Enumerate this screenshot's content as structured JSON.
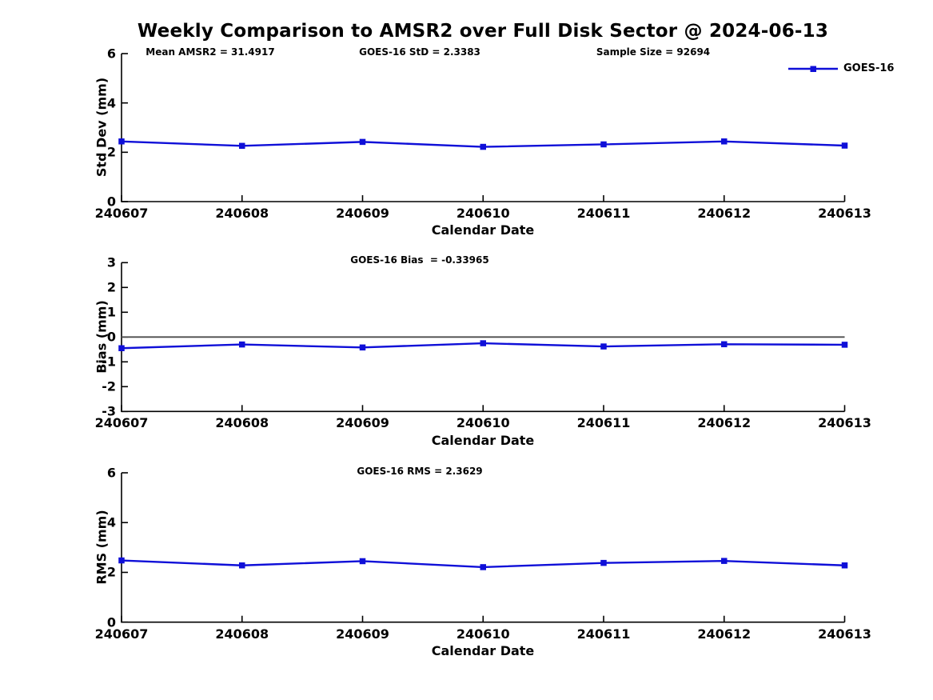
{
  "title": "Weekly Comparison to AMSR2 over Full Disk Sector @ 2024-06-13",
  "legend": {
    "label": "GOES-16",
    "marker": "filled-square",
    "position": "top-right"
  },
  "colors": {
    "line": "#0F0FD8",
    "marker": "#0F0FD8",
    "zero_line": "#4D4D4D",
    "axis": "#000000",
    "text": "#000000",
    "background": "#FFFFFF"
  },
  "chart_data": [
    {
      "type": "line",
      "ylabel": "Std Dev (mm)",
      "xlabel": "Calendar Date",
      "annotations": [
        "Mean AMSR2 = 31.4917",
        "GOES-16 StD = 2.3383",
        "Sample Size = 92694"
      ],
      "categories": [
        "240607",
        "240608",
        "240609",
        "240610",
        "240611",
        "240612",
        "240613"
      ],
      "series": [
        {
          "name": "GOES-16",
          "values": [
            2.44,
            2.26,
            2.42,
            2.22,
            2.32,
            2.44,
            2.27
          ]
        }
      ],
      "ylim": [
        0,
        6
      ],
      "yticks": [
        0,
        2,
        4,
        6
      ],
      "zero_line": false,
      "grid": false,
      "legend_position": "top-right"
    },
    {
      "type": "line",
      "ylabel": "Bias (mm)",
      "xlabel": "Calendar Date",
      "annotations": [
        "GOES-16 Bias  = -0.33965"
      ],
      "categories": [
        "240607",
        "240608",
        "240609",
        "240610",
        "240611",
        "240612",
        "240613"
      ],
      "series": [
        {
          "name": "GOES-16",
          "values": [
            -0.45,
            -0.3,
            -0.42,
            -0.25,
            -0.38,
            -0.29,
            -0.31
          ]
        }
      ],
      "ylim": [
        -3,
        3
      ],
      "yticks": [
        -3,
        -2,
        -1,
        0,
        1,
        2,
        3
      ],
      "zero_line": true,
      "grid": false,
      "legend_position": "none"
    },
    {
      "type": "line",
      "ylabel": "RMS (mm)",
      "xlabel": "Calendar Date",
      "annotations": [
        "GOES-16 RMS = 2.3629"
      ],
      "categories": [
        "240607",
        "240608",
        "240609",
        "240610",
        "240611",
        "240612",
        "240613"
      ],
      "series": [
        {
          "name": "GOES-16",
          "values": [
            2.48,
            2.28,
            2.45,
            2.21,
            2.38,
            2.46,
            2.28
          ]
        }
      ],
      "ylim": [
        0,
        6
      ],
      "yticks": [
        0,
        2,
        4,
        6
      ],
      "zero_line": false,
      "grid": false,
      "legend_position": "none"
    }
  ]
}
